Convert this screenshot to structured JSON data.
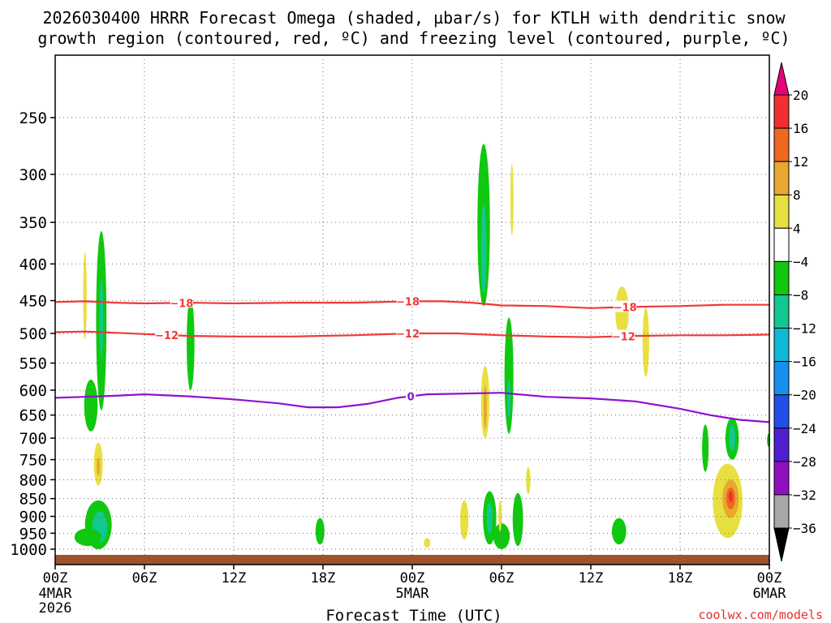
{
  "chart_data": {
    "type": "heatmap",
    "title": {
      "line1": "2026030400 HRRR Forecast Omega (shaded, µbar/s) for KTLH with dendritic snow",
      "line2": "growth region (contoured, red, ºC) and freezing level (contoured, purple, ºC)"
    },
    "xlabel": "Forecast Time (UTC)",
    "ylabel": "",
    "credit": "coolwx.com/models",
    "x_range_hours": [
      0,
      48
    ],
    "y_range_hpa": [
      1050,
      200
    ],
    "x_ticks": [
      {
        "hour": 0,
        "label": "00Z",
        "sub1": "4MAR",
        "sub2": "2026"
      },
      {
        "hour": 6,
        "label": "06Z",
        "sub1": "",
        "sub2": ""
      },
      {
        "hour": 12,
        "label": "12Z",
        "sub1": "",
        "sub2": ""
      },
      {
        "hour": 18,
        "label": "18Z",
        "sub1": "",
        "sub2": ""
      },
      {
        "hour": 24,
        "label": "00Z",
        "sub1": "5MAR",
        "sub2": ""
      },
      {
        "hour": 30,
        "label": "06Z",
        "sub1": "",
        "sub2": ""
      },
      {
        "hour": 36,
        "label": "12Z",
        "sub1": "",
        "sub2": ""
      },
      {
        "hour": 42,
        "label": "18Z",
        "sub1": "",
        "sub2": ""
      },
      {
        "hour": 48,
        "label": "00Z",
        "sub1": "6MAR",
        "sub2": ""
      }
    ],
    "y_ticks": [
      250,
      300,
      350,
      400,
      450,
      500,
      550,
      600,
      650,
      700,
      750,
      800,
      850,
      900,
      950,
      1000
    ],
    "colorbar": {
      "labels": [
        "20",
        "16",
        "12",
        "8",
        "4",
        "−4",
        "−8",
        "−12",
        "−16",
        "−20",
        "−24",
        "−28",
        "−32",
        "−36"
      ],
      "top_color": "#e8007a",
      "bottom_color": "#000000",
      "bands": [
        "#f03030",
        "#f06820",
        "#e8a830",
        "#e8e040",
        "#ffffff",
        "#10c810",
        "#10c890",
        "#10b8d8",
        "#1890f0",
        "#2050e8",
        "#5020d0",
        "#9010c0",
        "#a8a8a8"
      ]
    },
    "series": [
      {
        "name": "-18",
        "color": "#f03838",
        "label": "−18",
        "points": [
          [
            0,
            452
          ],
          [
            2,
            451
          ],
          [
            4,
            453
          ],
          [
            6,
            454
          ],
          [
            9,
            453
          ],
          [
            12,
            454
          ],
          [
            16,
            453
          ],
          [
            20,
            453
          ],
          [
            24,
            451
          ],
          [
            26,
            451
          ],
          [
            28,
            453
          ],
          [
            30,
            457
          ],
          [
            33,
            458
          ],
          [
            36,
            461
          ],
          [
            39,
            459
          ],
          [
            42,
            458
          ],
          [
            45,
            456
          ],
          [
            48,
            456
          ]
        ],
        "label_hours": [
          8.5,
          23.7,
          38.3
        ]
      },
      {
        "name": "-12",
        "color": "#f03838",
        "label": "−12",
        "points": [
          [
            0,
            498
          ],
          [
            2,
            497
          ],
          [
            4,
            499
          ],
          [
            6,
            501
          ],
          [
            9,
            504
          ],
          [
            12,
            505
          ],
          [
            16,
            505
          ],
          [
            20,
            503
          ],
          [
            24,
            500
          ],
          [
            27,
            500
          ],
          [
            30,
            503
          ],
          [
            33,
            505
          ],
          [
            36,
            506
          ],
          [
            39,
            504
          ],
          [
            42,
            503
          ],
          [
            45,
            503
          ],
          [
            48,
            502
          ]
        ],
        "label_hours": [
          7.5,
          23.7,
          38.2
        ]
      },
      {
        "name": "0",
        "color": "#9010d0",
        "label": "0",
        "points": [
          [
            0,
            615
          ],
          [
            2,
            613
          ],
          [
            4,
            611
          ],
          [
            6,
            608
          ],
          [
            9,
            612
          ],
          [
            12,
            618
          ],
          [
            15,
            626
          ],
          [
            17,
            634
          ],
          [
            19,
            634
          ],
          [
            21,
            627
          ],
          [
            23,
            615
          ],
          [
            25,
            608
          ],
          [
            27,
            607
          ],
          [
            30,
            605
          ],
          [
            33,
            613
          ],
          [
            36,
            616
          ],
          [
            39,
            622
          ],
          [
            42,
            637
          ],
          [
            44,
            650
          ],
          [
            46,
            660
          ],
          [
            48,
            665
          ]
        ],
        "label_hours": [
          23.9
        ]
      }
    ],
    "omega_regions": [
      {
        "hour": 3.1,
        "p1": 360,
        "p2": 640,
        "hw": 0.35,
        "color": "#10c810"
      },
      {
        "hour": 2.4,
        "p1": 580,
        "p2": 685,
        "hw": 0.45,
        "color": "#10c810"
      },
      {
        "hour": 3.1,
        "p1": 420,
        "p2": 540,
        "hw": 0.12,
        "color": "#10c890"
      },
      {
        "hour": 2.0,
        "p1": 385,
        "p2": 510,
        "hw": 0.12,
        "color": "#e8e040"
      },
      {
        "hour": 2.9,
        "p1": 855,
        "p2": 1000,
        "hw": 0.9,
        "color": "#10c810"
      },
      {
        "hour": 3.0,
        "p1": 885,
        "p2": 980,
        "hw": 0.5,
        "color": "#10c890"
      },
      {
        "hour": 2.2,
        "p1": 935,
        "p2": 990,
        "hw": 0.9,
        "color": "#10c810"
      },
      {
        "hour": 2.9,
        "p1": 710,
        "p2": 815,
        "hw": 0.3,
        "color": "#e8e040"
      },
      {
        "hour": 2.9,
        "p1": 745,
        "p2": 790,
        "hw": 0.09,
        "color": "#e8a830"
      },
      {
        "hour": 9.1,
        "p1": 445,
        "p2": 600,
        "hw": 0.26,
        "color": "#10c810"
      },
      {
        "hour": 17.8,
        "p1": 905,
        "p2": 985,
        "hw": 0.3,
        "color": "#10c810"
      },
      {
        "hour": 25.0,
        "p1": 965,
        "p2": 995,
        "hw": 0.22,
        "color": "#e8e040"
      },
      {
        "hour": 27.5,
        "p1": 855,
        "p2": 970,
        "hw": 0.28,
        "color": "#e8e040"
      },
      {
        "hour": 28.8,
        "p1": 272,
        "p2": 458,
        "hw": 0.42,
        "color": "#10c810"
      },
      {
        "hour": 28.8,
        "p1": 330,
        "p2": 440,
        "hw": 0.18,
        "color": "#10c890"
      },
      {
        "hour": 28.9,
        "p1": 555,
        "p2": 700,
        "hw": 0.28,
        "color": "#e8e040"
      },
      {
        "hour": 28.9,
        "p1": 590,
        "p2": 680,
        "hw": 0.09,
        "color": "#e8a830"
      },
      {
        "hour": 29.2,
        "p1": 830,
        "p2": 985,
        "hw": 0.45,
        "color": "#10c810"
      },
      {
        "hour": 29.2,
        "p1": 860,
        "p2": 950,
        "hw": 0.2,
        "color": "#10c890"
      },
      {
        "hour": 30.0,
        "p1": 920,
        "p2": 1000,
        "hw": 0.55,
        "color": "#10c810"
      },
      {
        "hour": 30.5,
        "p1": 475,
        "p2": 690,
        "hw": 0.3,
        "color": "#10c810"
      },
      {
        "hour": 30.5,
        "p1": 580,
        "p2": 655,
        "hw": 0.07,
        "color": "#10c890"
      },
      {
        "hour": 30.7,
        "p1": 290,
        "p2": 365,
        "hw": 0.1,
        "color": "#e8e040"
      },
      {
        "hour": 29.9,
        "p1": 855,
        "p2": 945,
        "hw": 0.09,
        "color": "#e8e040"
      },
      {
        "hour": 31.8,
        "p1": 768,
        "p2": 838,
        "hw": 0.15,
        "color": "#e8e040"
      },
      {
        "hour": 31.1,
        "p1": 835,
        "p2": 990,
        "hw": 0.35,
        "color": "#10c810"
      },
      {
        "hour": 38.1,
        "p1": 430,
        "p2": 505,
        "hw": 0.45,
        "color": "#e8e040"
      },
      {
        "hour": 39.7,
        "p1": 460,
        "p2": 575,
        "hw": 0.22,
        "color": "#e8e040"
      },
      {
        "hour": 37.9,
        "p1": 905,
        "p2": 985,
        "hw": 0.48,
        "color": "#10c810"
      },
      {
        "hour": 43.7,
        "p1": 670,
        "p2": 780,
        "hw": 0.22,
        "color": "#10c810"
      },
      {
        "hour": 45.5,
        "p1": 655,
        "p2": 750,
        "hw": 0.45,
        "color": "#10c810"
      },
      {
        "hour": 45.5,
        "p1": 670,
        "p2": 730,
        "hw": 0.2,
        "color": "#10c890"
      },
      {
        "hour": 47.95,
        "p1": 690,
        "p2": 720,
        "hw": 0.1,
        "color": "#10c810"
      },
      {
        "hour": 45.2,
        "p1": 760,
        "p2": 965,
        "hw": 1.0,
        "color": "#e8e040"
      },
      {
        "hour": 45.4,
        "p1": 800,
        "p2": 905,
        "hw": 0.55,
        "color": "#e8a830"
      },
      {
        "hour": 45.4,
        "p1": 820,
        "p2": 880,
        "hw": 0.3,
        "color": "#f06820"
      },
      {
        "hour": 45.4,
        "p1": 830,
        "p2": 860,
        "hw": 0.14,
        "color": "#f03030"
      }
    ],
    "terrain_color": "#a0522d",
    "grid": true
  }
}
